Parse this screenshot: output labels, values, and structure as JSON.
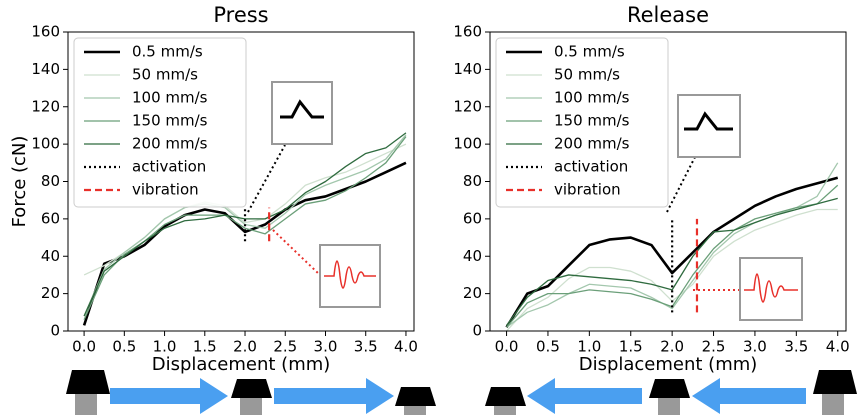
{
  "chart_data": [
    {
      "type": "line",
      "title": "Press",
      "xlabel": "Displacement (mm)",
      "ylabel": "Force (cN)",
      "x": [
        0,
        0.25,
        0.5,
        0.75,
        1,
        1.25,
        1.5,
        1.75,
        2,
        2.25,
        2.5,
        2.75,
        3,
        3.25,
        3.5,
        3.75,
        4
      ],
      "xlim": [
        -0.2,
        4.1
      ],
      "xticks": [
        {
          "value": 0,
          "label": "0.0"
        },
        {
          "value": 0.5,
          "label": "0.5"
        },
        {
          "value": 1,
          "label": "1.0"
        },
        {
          "value": 1.5,
          "label": "1.5"
        },
        {
          "value": 2,
          "label": "2.0"
        },
        {
          "value": 2.5,
          "label": "2.5"
        },
        {
          "value": 3,
          "label": "3.0"
        },
        {
          "value": 3.5,
          "label": "3.5"
        },
        {
          "value": 4,
          "label": "4.0"
        }
      ],
      "ylim": [
        0,
        160
      ],
      "yticks": [
        0,
        20,
        40,
        60,
        80,
        100,
        120,
        140,
        160
      ],
      "legend": "upper left",
      "series": [
        {
          "name": "0.5 mm/s",
          "color": "#000000",
          "width": 2.6,
          "dash": "solid",
          "values": [
            3,
            36,
            40,
            46,
            56,
            62,
            65,
            63,
            53,
            57,
            65,
            70,
            72,
            76,
            80,
            85,
            90
          ]
        },
        {
          "name": "50 mm/s",
          "color": "#cfe0cf",
          "width": 1.3,
          "dash": "solid",
          "values": [
            30,
            35,
            42,
            50,
            60,
            66,
            69,
            67,
            58,
            60,
            68,
            78,
            82,
            85,
            90,
            95,
            100
          ]
        },
        {
          "name": "100 mm/s",
          "color": "#a3c7ad",
          "width": 1.3,
          "dash": "solid",
          "values": [
            8,
            33,
            42,
            50,
            60,
            66,
            68,
            66,
            57,
            55,
            63,
            73,
            78,
            82,
            86,
            92,
            105
          ]
        },
        {
          "name": "150 mm/s",
          "color": "#6b9f79",
          "width": 1.3,
          "dash": "solid",
          "values": [
            6,
            30,
            41,
            48,
            57,
            62,
            62,
            62,
            55,
            52,
            60,
            68,
            70,
            75,
            82,
            90,
            104
          ]
        },
        {
          "name": "200 mm/s",
          "color": "#2f6b3f",
          "width": 1.3,
          "dash": "solid",
          "values": [
            8,
            32,
            40,
            48,
            55,
            59,
            60,
            62,
            60,
            60,
            65,
            74,
            80,
            88,
            95,
            98,
            106
          ]
        },
        {
          "name": "activation",
          "color": "#000000",
          "width": 2.2,
          "dash": "dotted",
          "x": [
            2,
            2
          ],
          "values": [
            48,
            66
          ]
        },
        {
          "name": "vibration",
          "color": "#e8302a",
          "width": 2.2,
          "dash": "dashed",
          "x": [
            2.3,
            2.3
          ],
          "values": [
            48,
            66
          ]
        }
      ]
    },
    {
      "type": "line",
      "title": "Release",
      "xlabel": "Displacement (mm)",
      "x": [
        0,
        0.25,
        0.5,
        0.75,
        1,
        1.25,
        1.5,
        1.75,
        2,
        2.25,
        2.5,
        2.75,
        3,
        3.25,
        3.5,
        3.75,
        4
      ],
      "xlim": [
        -0.2,
        4.1
      ],
      "xticks": [
        {
          "value": 0,
          "label": "0.0"
        },
        {
          "value": 0.5,
          "label": "0.5"
        },
        {
          "value": 1,
          "label": "1.0"
        },
        {
          "value": 1.5,
          "label": "1.5"
        },
        {
          "value": 2,
          "label": "2.0"
        },
        {
          "value": 2.5,
          "label": "2.5"
        },
        {
          "value": 3,
          "label": "3.0"
        },
        {
          "value": 3.5,
          "label": "3.5"
        },
        {
          "value": 4,
          "label": "4.0"
        }
      ],
      "ylim": [
        0,
        160
      ],
      "yticks": [
        0,
        20,
        40,
        60,
        80,
        100,
        120,
        140,
        160
      ],
      "legend": "upper left",
      "series": [
        {
          "name": "0.5 mm/s",
          "color": "#000000",
          "width": 2.6,
          "dash": "solid",
          "values": [
            2,
            20,
            24,
            35,
            46,
            49,
            50,
            46,
            31,
            42,
            53,
            60,
            67,
            72,
            76,
            79,
            82
          ]
        },
        {
          "name": "50 mm/s",
          "color": "#cfe0cf",
          "width": 1.3,
          "dash": "solid",
          "values": [
            0,
            12,
            18,
            28,
            34,
            34,
            32,
            27,
            16,
            25,
            40,
            48,
            54,
            58,
            62,
            65,
            65
          ]
        },
        {
          "name": "100 mm/s",
          "color": "#a3c7ad",
          "width": 1.3,
          "dash": "solid",
          "values": [
            2,
            10,
            14,
            20,
            25,
            24,
            23,
            18,
            12,
            27,
            42,
            52,
            58,
            62,
            66,
            72,
            90
          ]
        },
        {
          "name": "150 mm/s",
          "color": "#6b9f79",
          "width": 1.3,
          "dash": "solid",
          "values": [
            2,
            15,
            20,
            20,
            22,
            21,
            20,
            17,
            13,
            30,
            44,
            54,
            60,
            63,
            66,
            68,
            78
          ]
        },
        {
          "name": "200 mm/s",
          "color": "#2f6b3f",
          "width": 1.3,
          "dash": "solid",
          "values": [
            3,
            18,
            27,
            30,
            29,
            28,
            27,
            25,
            22,
            40,
            53,
            54,
            58,
            62,
            65,
            68,
            71
          ]
        },
        {
          "name": "activation",
          "color": "#000000",
          "width": 2.2,
          "dash": "dotted",
          "x": [
            2,
            2
          ],
          "values": [
            10,
            60
          ]
        },
        {
          "name": "vibration",
          "color": "#e8302a",
          "width": 2.2,
          "dash": "dashed",
          "x": [
            2.3,
            2.3
          ],
          "values": [
            10,
            60
          ]
        }
      ]
    }
  ]
}
